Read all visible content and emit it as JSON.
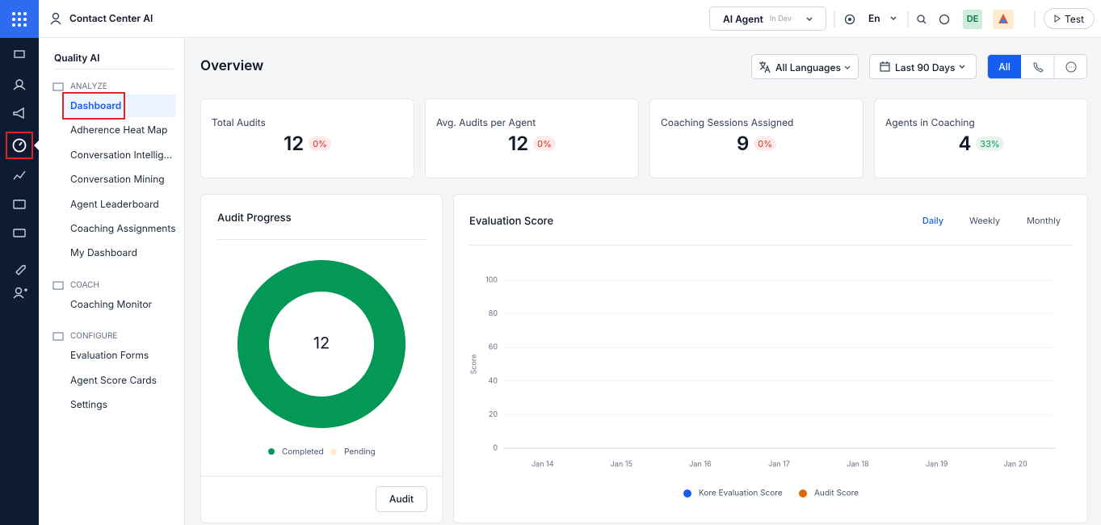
{
  "topbar": {
    "app": "Contact Center AI",
    "agent": "AI Agent",
    "agent_status": "In Dev",
    "language": "En",
    "user": "DE",
    "test": "Test"
  },
  "sidebar": {
    "title": "Quality AI",
    "sections": [
      {
        "name": "ANALYZE",
        "items": [
          "Dashboard",
          "Adherence Heat Map",
          "Conversation Intellig...",
          "Conversation Mining",
          "Agent Leaderboard",
          "Coaching Assignments",
          "My Dashboard"
        ]
      },
      {
        "name": "COACH",
        "items": [
          "Coaching Monitor"
        ]
      },
      {
        "name": "CONFIGURE",
        "items": [
          "Evaluation Forms",
          "Agent Score Cards",
          "Settings"
        ]
      }
    ]
  },
  "header": {
    "title": "Overview",
    "language_filter": "All Languages",
    "date_filter": "Last 90 Days",
    "channel_all": "All"
  },
  "kpis": [
    {
      "label": "Total Audits",
      "value": 12,
      "change": "0%",
      "color": "#d92d20"
    },
    {
      "label": "Avg. Audits per Agent",
      "value": 12,
      "change": "0%",
      "color": "#d92d20"
    },
    {
      "label": "Coaching Sessions Assigned",
      "value": 9,
      "change": "0%",
      "color": "#d92d20"
    },
    {
      "label": "Agents in Coaching",
      "value": 4,
      "change": "33%",
      "color": "#079455"
    }
  ],
  "chart_data": [
    {
      "type": "pie",
      "title": "Audit Progress",
      "total": 12,
      "categories": [
        "Completed",
        "Pending"
      ],
      "values": [
        12,
        0
      ],
      "colors": [
        "#039855",
        "#fdeccf"
      ],
      "button": "Audit"
    },
    {
      "type": "line",
      "title": "Evaluation Score",
      "tabs": [
        "Daily",
        "Weekly",
        "Monthly"
      ],
      "ylabel": "Score",
      "categories": [
        "Jan 14",
        "Jan 15",
        "Jan 16",
        "Jan 17",
        "Jan 18",
        "Jan 19",
        "Jan 20"
      ],
      "series": [
        {
          "name": "Kore Evaluation Score",
          "color": "#155eef",
          "values": [
            null,
            null,
            null,
            null,
            null,
            null,
            null
          ]
        },
        {
          "name": "Audit Score",
          "color": "#dc6803",
          "values": [
            null,
            null,
            null,
            null,
            null,
            null,
            null
          ]
        }
      ],
      "ylim": [
        0,
        100
      ],
      "yticks": [
        0,
        20,
        40,
        60,
        80,
        100
      ],
      "grid": true
    }
  ]
}
